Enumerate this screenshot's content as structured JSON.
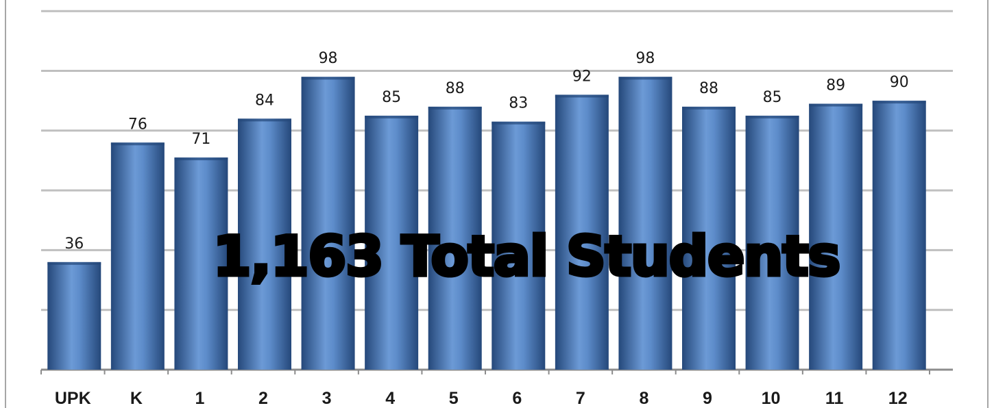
{
  "chart_data": {
    "type": "bar",
    "title": "1,163 Total Students",
    "xlabel": "",
    "ylabel": "",
    "categories": [
      "UPK",
      "K",
      "1",
      "2",
      "3",
      "4",
      "5",
      "6",
      "7",
      "8",
      "9",
      "10",
      "11",
      "12"
    ],
    "values": [
      36,
      76,
      71,
      84,
      98,
      85,
      88,
      83,
      92,
      98,
      88,
      85,
      89,
      90
    ],
    "ylim": [
      0,
      120
    ],
    "grid": true,
    "legend": "none",
    "colors": {
      "bar": "#4a7cc0",
      "bar_dark": "#25487a",
      "gridline": "#bfbfbf",
      "axis": "#8c8c8c"
    }
  }
}
